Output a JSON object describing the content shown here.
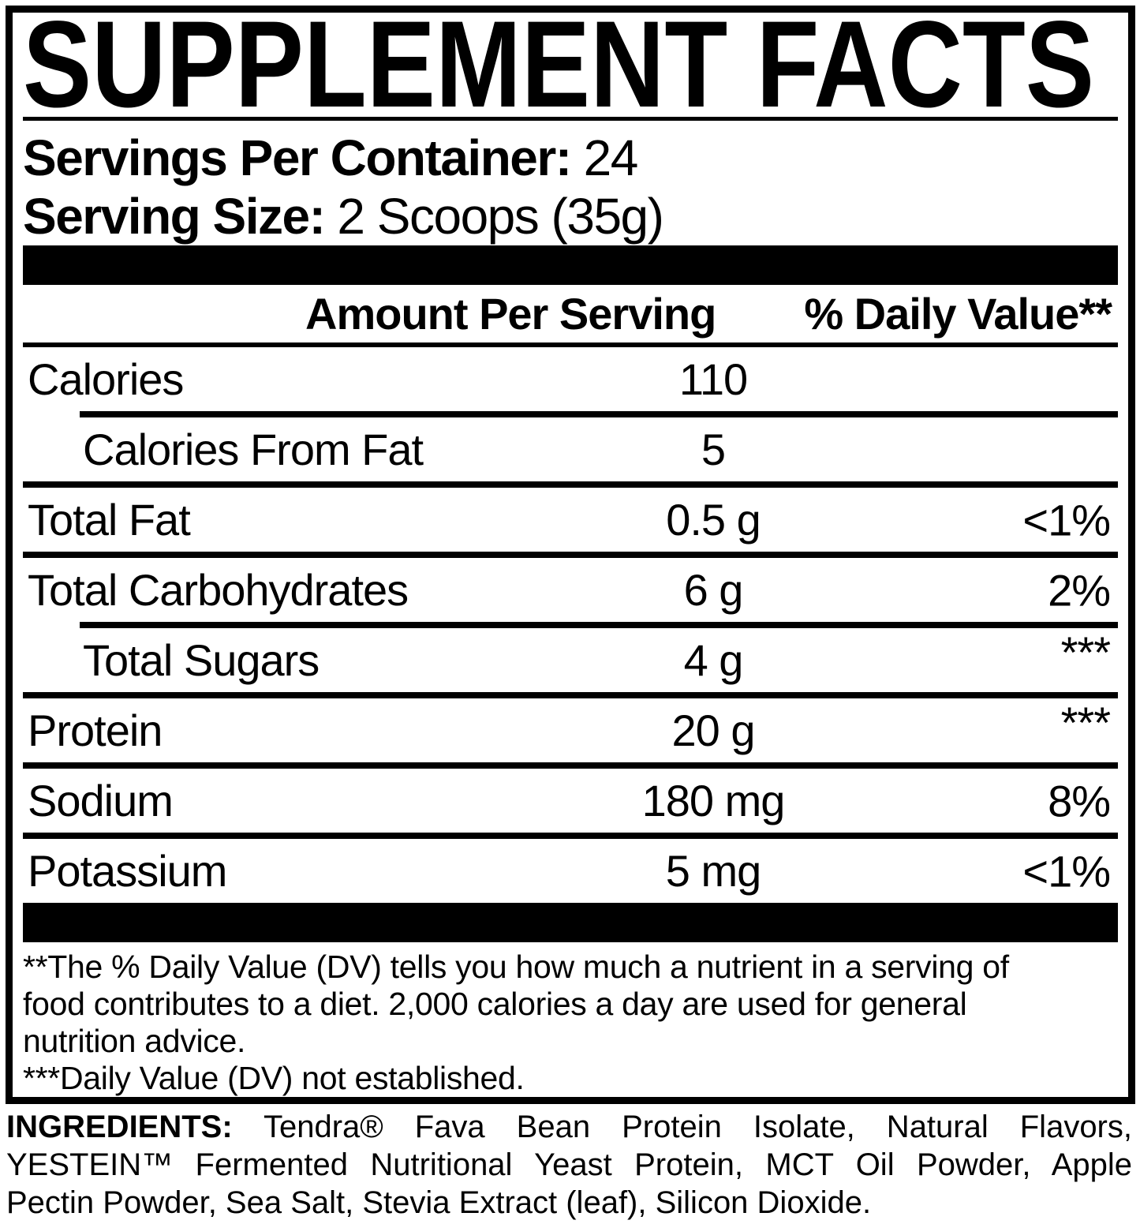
{
  "title": "SUPPLEMENT FACTS",
  "serving_info": {
    "servings_per_container_label": "Servings Per Container:",
    "servings_per_container_value": "24",
    "serving_size_label": "Serving Size:",
    "serving_size_value": "2 Scoops (35g)"
  },
  "table": {
    "header": {
      "amount": "Amount Per Serving",
      "daily_value": "% Daily Value**"
    },
    "rows": [
      {
        "label": "Calories",
        "amount": "110",
        "dv": ""
      },
      {
        "label": "Calories From Fat",
        "amount": "5",
        "dv": ""
      },
      {
        "label": "Total Fat",
        "amount": "0.5 g",
        "dv": "<1%"
      },
      {
        "label": "Total Carbohydrates",
        "amount": "6 g",
        "dv": "2%"
      },
      {
        "label": "Total Sugars",
        "amount": "4 g",
        "dv": "***"
      },
      {
        "label": "Protein",
        "amount": "20 g",
        "dv": "***"
      },
      {
        "label": "Sodium",
        "amount": "180 mg",
        "dv": "8%"
      },
      {
        "label": "Potassium",
        "amount": "5 mg",
        "dv": "<1%"
      }
    ]
  },
  "footnotes": {
    "lines": [
      "**The % Daily Value (DV) tells you how much a nutrient in a serving of",
      "food contributes to a diet. 2,000 calories a day are used for general",
      "nutrition advice.",
      "***Daily Value (DV) not established."
    ]
  },
  "ingredients": {
    "label": "INGREDIENTS:",
    "lines": [
      "Tendra® Fava Bean Protein Isolate, Natural Flavors,",
      "YESTEIN™ Fermented Nutritional Yeast Protein, MCT Oil Powder, Apple",
      "Pectin Powder, Sea Salt, Stevia Extract (leaf), Silicon Dioxide."
    ]
  },
  "colors": {
    "text": "#000000",
    "background": "#ffffff"
  }
}
